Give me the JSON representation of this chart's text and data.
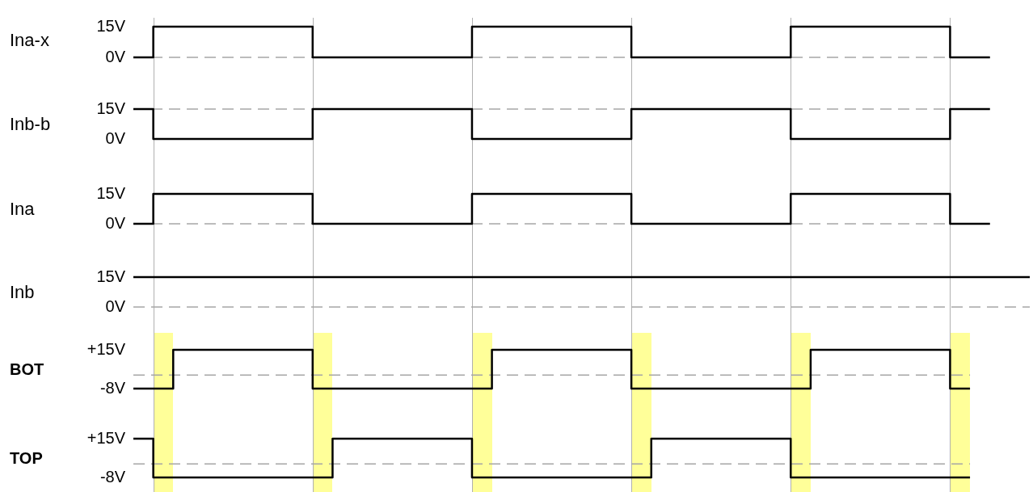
{
  "chart_data": [
    {
      "type": "step",
      "ylabel": "Ina-x",
      "categories": [
        null,
        null,
        null,
        null,
        null,
        null,
        null,
        null,
        null,
        null,
        null,
        null,
        null,
        null,
        null,
        null,
        null,
        null,
        null,
        null,
        null,
        null,
        null,
        null,
        null,
        null,
        null,
        null,
        null,
        null,
        null,
        null,
        null,
        null,
        null,
        null,
        null,
        null,
        null,
        null,
        null,
        null,
        null,
        null
      ],
      "values": [
        0,
        0,
        15,
        15,
        15,
        15,
        15,
        15,
        15,
        15,
        0,
        0,
        0,
        0,
        0,
        0,
        0,
        0,
        15,
        15,
        15,
        15,
        15,
        15,
        15,
        15,
        0,
        0,
        0,
        0,
        0,
        0,
        0,
        0,
        15,
        15,
        15,
        15,
        15,
        15,
        15,
        15,
        0,
        0
      ],
      "color": "#000000",
      "ylim": [
        0,
        15
      ],
      "yticks": [
        {
          "value": 0,
          "label": "0V"
        },
        {
          "value": 15,
          "label": "15V"
        }
      ],
      "tick_labels": "y",
      "ref_lines": [
        {
          "axis": "y",
          "value": 0,
          "line_style": "dashed",
          "color": "#a6a6a6"
        }
      ]
    },
    {
      "type": "step",
      "ylabel": "Inb-b",
      "categories": [
        null,
        null,
        null,
        null,
        null,
        null,
        null,
        null,
        null,
        null,
        null,
        null,
        null,
        null,
        null,
        null,
        null,
        null,
        null,
        null,
        null,
        null,
        null,
        null,
        null,
        null,
        null,
        null,
        null,
        null,
        null,
        null,
        null,
        null,
        null,
        null,
        null,
        null,
        null,
        null,
        null,
        null,
        null,
        null
      ],
      "values": [
        15,
        15,
        0,
        0,
        0,
        0,
        0,
        0,
        0,
        0,
        15,
        15,
        15,
        15,
        15,
        15,
        15,
        15,
        0,
        0,
        0,
        0,
        0,
        0,
        0,
        0,
        15,
        15,
        15,
        15,
        15,
        15,
        15,
        15,
        0,
        0,
        0,
        0,
        0,
        0,
        0,
        0,
        15,
        15
      ],
      "color": "#000000",
      "ylim": [
        0,
        15
      ],
      "yticks": [
        {
          "value": 0,
          "label": "0V"
        },
        {
          "value": 15,
          "label": "15V"
        }
      ],
      "tick_labels": "y",
      "ref_lines": [
        {
          "axis": "y",
          "value": 15,
          "line_style": "dashed",
          "color": "#a6a6a6"
        }
      ]
    },
    {
      "type": "step",
      "ylabel": "Ina",
      "categories": [
        null,
        null,
        null,
        null,
        null,
        null,
        null,
        null,
        null,
        null,
        null,
        null,
        null,
        null,
        null,
        null,
        null,
        null,
        null,
        null,
        null,
        null,
        null,
        null,
        null,
        null,
        null,
        null,
        null,
        null,
        null,
        null,
        null,
        null,
        null,
        null,
        null,
        null,
        null,
        null,
        null,
        null,
        null,
        null
      ],
      "values": [
        0,
        0,
        15,
        15,
        15,
        15,
        15,
        15,
        15,
        15,
        0,
        0,
        0,
        0,
        0,
        0,
        0,
        0,
        15,
        15,
        15,
        15,
        15,
        15,
        15,
        15,
        0,
        0,
        0,
        0,
        0,
        0,
        0,
        0,
        15,
        15,
        15,
        15,
        15,
        15,
        15,
        15,
        0,
        0
      ],
      "color": "#000000",
      "ylim": [
        0,
        15
      ],
      "yticks": [
        {
          "value": 0,
          "label": "0V"
        },
        {
          "value": 15,
          "label": "15V"
        }
      ],
      "tick_labels": "y",
      "ref_lines": [
        {
          "axis": "y",
          "value": 0,
          "line_style": "dashed",
          "color": "#a6a6a6"
        }
      ]
    },
    {
      "type": "step",
      "ylabel": "Inb",
      "categories": [
        null,
        null,
        null,
        null,
        null,
        null,
        null,
        null,
        null,
        null,
        null,
        null,
        null,
        null,
        null,
        null,
        null,
        null,
        null,
        null,
        null,
        null,
        null,
        null,
        null,
        null,
        null,
        null,
        null,
        null,
        null,
        null,
        null,
        null,
        null,
        null,
        null,
        null,
        null,
        null,
        null,
        null,
        null,
        null,
        null,
        null
      ],
      "values": [
        15,
        15,
        15,
        15,
        15,
        15,
        15,
        15,
        15,
        15,
        15,
        15,
        15,
        15,
        15,
        15,
        15,
        15,
        15,
        15,
        15,
        15,
        15,
        15,
        15,
        15,
        15,
        15,
        15,
        15,
        15,
        15,
        15,
        15,
        15,
        15,
        15,
        15,
        15,
        15,
        15,
        15,
        15,
        15,
        15,
        15
      ],
      "color": "#000000",
      "ylim": [
        0,
        15
      ],
      "yticks": [
        {
          "value": 0,
          "label": "0V"
        },
        {
          "value": 15,
          "label": "15V"
        }
      ],
      "tick_labels": "y",
      "ref_lines": [
        {
          "axis": "y",
          "value": 0,
          "line_style": "dashed",
          "color": "#a6a6a6"
        }
      ]
    },
    {
      "type": "step",
      "ylabel": "BOT",
      "categories": [
        null,
        null,
        null,
        null,
        null,
        null,
        null,
        null,
        null,
        null,
        null,
        null,
        null,
        null,
        null,
        null,
        null,
        null,
        null,
        null,
        null,
        null,
        null,
        null,
        null,
        null,
        null,
        null,
        null,
        null,
        null,
        null,
        null,
        null,
        null,
        null,
        null,
        null,
        null,
        null,
        null,
        null,
        null
      ],
      "values": [
        -8,
        -8,
        -8,
        15,
        15,
        15,
        15,
        15,
        15,
        15,
        -8,
        -8,
        -8,
        -8,
        -8,
        -8,
        -8,
        -8,
        -8,
        15,
        15,
        15,
        15,
        15,
        15,
        15,
        -8,
        -8,
        -8,
        -8,
        -8,
        -8,
        -8,
        -8,
        -8,
        15,
        15,
        15,
        15,
        15,
        15,
        15,
        -8
      ],
      "color": "#000000",
      "ylim": [
        -8,
        15
      ],
      "yticks": [
        {
          "value": -8,
          "label": "-8V"
        },
        {
          "value": 15,
          "label": "+15V"
        }
      ],
      "tick_labels": "y",
      "ref_lines": [
        {
          "axis": "y",
          "value": 0,
          "line_style": "dashed",
          "color": "#a6a6a6"
        }
      ]
    },
    {
      "type": "step",
      "ylabel": "TOP",
      "categories": [
        null,
        null,
        null,
        null,
        null,
        null,
        null,
        null,
        null,
        null,
        null,
        null,
        null,
        null,
        null,
        null,
        null,
        null,
        null,
        null,
        null,
        null,
        null,
        null,
        null,
        null,
        null,
        null,
        null,
        null,
        null,
        null,
        null,
        null,
        null,
        null,
        null,
        null,
        null,
        null,
        null,
        null,
        null
      ],
      "values": [
        15,
        15,
        -8,
        -8,
        -8,
        -8,
        -8,
        -8,
        -8,
        -8,
        -8,
        15,
        15,
        15,
        15,
        15,
        15,
        15,
        -8,
        -8,
        -8,
        -8,
        -8,
        -8,
        -8,
        -8,
        -8,
        15,
        15,
        15,
        15,
        15,
        15,
        15,
        -8,
        -8,
        -8,
        -8,
        -8,
        -8,
        -8,
        -8,
        -8
      ],
      "color": "#000000",
      "ylim": [
        -8,
        15
      ],
      "yticks": [
        {
          "value": -8,
          "label": "-8V"
        },
        {
          "value": 15,
          "label": "+15V"
        }
      ],
      "tick_labels": "y",
      "ref_lines": [
        {
          "axis": "y",
          "value": 0,
          "line_style": "dashed",
          "color": "#a6a6a6"
        }
      ]
    }
  ]
}
